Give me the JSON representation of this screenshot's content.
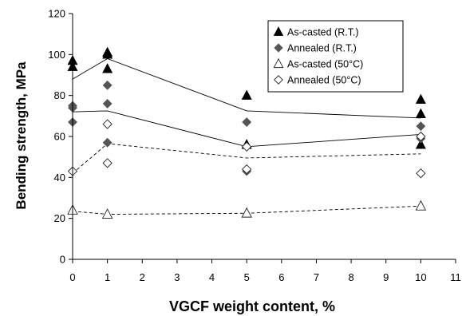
{
  "chart_data": {
    "type": "scatter",
    "title": "",
    "xlabel": "VGCF weight content, %",
    "ylabel": "Bending strength, MPa",
    "xlim": [
      0,
      11
    ],
    "ylim": [
      0,
      120
    ],
    "xticks": [
      "0",
      "1",
      "2",
      "3",
      "4",
      "5",
      "6",
      "7",
      "8",
      "9",
      "10",
      "11"
    ],
    "yticks": [
      "0",
      "20",
      "40",
      "60",
      "80",
      "100",
      "120"
    ],
    "grid": false,
    "legend_position": "top-right",
    "series": [
      {
        "name": "As-casted (R.T.)",
        "marker": "triangle-filled",
        "color": "#000000",
        "points": [
          [
            0,
            97
          ],
          [
            0,
            94
          ],
          [
            1,
            100
          ],
          [
            1,
            101
          ],
          [
            1,
            93
          ],
          [
            5,
            80
          ],
          [
            5,
            56
          ],
          [
            10,
            78
          ],
          [
            10,
            71
          ],
          [
            10,
            56
          ]
        ],
        "trend": {
          "style": "solid",
          "x": [
            0,
            1,
            5,
            10
          ],
          "y": [
            88,
            98,
            72.5,
            69
          ]
        }
      },
      {
        "name": "Annealed (R.T.)",
        "marker": "diamond-filled",
        "color": "#555555",
        "points": [
          [
            0,
            75
          ],
          [
            0,
            74
          ],
          [
            0,
            67
          ],
          [
            1,
            85
          ],
          [
            1,
            76
          ],
          [
            1,
            57
          ],
          [
            5,
            67
          ],
          [
            5,
            44
          ],
          [
            5,
            43
          ],
          [
            10,
            65
          ],
          [
            10,
            59
          ]
        ],
        "trend": {
          "style": "solid",
          "x": [
            0,
            1,
            5,
            10
          ],
          "y": [
            72,
            72.5,
            55,
            61
          ]
        }
      },
      {
        "name": "As-casted (50°C)",
        "marker": "triangle-open",
        "color": "#000000",
        "points": [
          [
            0,
            24
          ],
          [
            1,
            22
          ],
          [
            5,
            22.5
          ],
          [
            10,
            26
          ]
        ],
        "trend": {
          "style": "dashed",
          "x": [
            0,
            1,
            5,
            10
          ],
          "y": [
            23.5,
            22,
            22.5,
            26
          ]
        }
      },
      {
        "name": "Annealed (50°C)",
        "marker": "diamond-open",
        "color": "#000000",
        "points": [
          [
            0,
            43
          ],
          [
            1,
            66
          ],
          [
            1,
            47
          ],
          [
            5,
            55
          ],
          [
            5,
            44
          ],
          [
            10,
            60
          ],
          [
            10,
            42
          ]
        ],
        "trend": {
          "style": "dashed",
          "x": [
            0,
            1,
            5,
            10
          ],
          "y": [
            42,
            56.5,
            49.5,
            51.5
          ]
        }
      }
    ]
  }
}
